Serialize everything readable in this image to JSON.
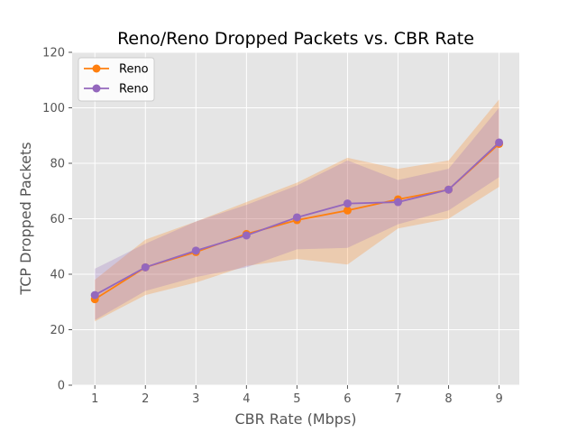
{
  "chart_data": {
    "type": "line",
    "title": "Reno/Reno Dropped Packets vs. CBR Rate",
    "xlabel": "CBR Rate (Mbps)",
    "ylabel": "TCP Dropped Packets",
    "x": [
      1,
      2,
      3,
      4,
      5,
      6,
      7,
      8,
      9
    ],
    "xlim": [
      0.55,
      9.4
    ],
    "ylim": [
      0,
      120
    ],
    "xticks": [
      1,
      2,
      3,
      4,
      5,
      6,
      7,
      8,
      9
    ],
    "yticks": [
      0,
      20,
      40,
      60,
      80,
      100,
      120
    ],
    "grid": true,
    "legend_position": "top-left",
    "series": [
      {
        "name": "Reno",
        "color": "#ff7f0e",
        "values": [
          31,
          42.5,
          48,
          54.5,
          59.5,
          63,
          67,
          70.5,
          87
        ],
        "band_upper": [
          38,
          52.5,
          59,
          66,
          73,
          82,
          78,
          81,
          103
        ],
        "band_lower": [
          23,
          32.5,
          37,
          43,
          45.5,
          43.5,
          56.5,
          60,
          71.5
        ]
      },
      {
        "name": "Reno",
        "color": "#9467bd",
        "values": [
          32.5,
          42.5,
          48.5,
          54,
          60.5,
          65.5,
          66,
          70.5,
          87.5
        ],
        "band_upper": [
          42,
          51,
          59,
          65,
          72,
          81,
          74,
          78,
          100
        ],
        "band_lower": [
          23.5,
          34,
          39,
          42.5,
          49,
          49.5,
          58,
          63,
          75
        ]
      }
    ]
  }
}
